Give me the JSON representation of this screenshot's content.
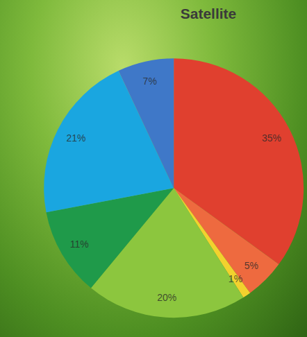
{
  "chart_data": {
    "type": "pie",
    "title": "Satellite",
    "values": [
      35,
      5,
      1,
      20,
      11,
      21,
      7
    ],
    "value_labels": [
      "35%",
      "5%",
      "1%",
      "20%",
      "11%",
      "21%",
      "7%"
    ],
    "colors": [
      "#e0402f",
      "#ee6a3f",
      "#f2d22e",
      "#8cc63e",
      "#1f9a4a",
      "#1aa6e0",
      "#3f78c8"
    ],
    "data_labels": true
  }
}
